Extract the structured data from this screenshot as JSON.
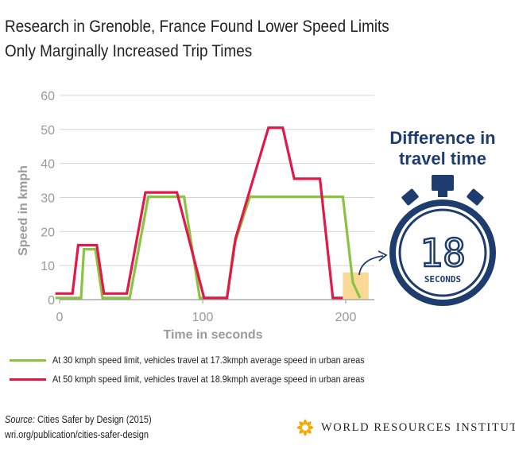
{
  "title_lines": [
    "Research in Grenoble, France Found Lower Speed Limits",
    "Only Marginally Increased Trip Times"
  ],
  "chart_data": {
    "type": "line",
    "title": "Research in Grenoble, France Found Lower Speed Limits Only Marginally Increased Trip Times",
    "xlabel": "Time in seconds",
    "ylabel": "Speed in kmph",
    "xlim": [
      0,
      220
    ],
    "ylim": [
      0,
      60
    ],
    "x_ticks": [
      0,
      100,
      200
    ],
    "y_ticks": [
      0,
      10,
      20,
      30,
      40,
      50,
      60
    ],
    "grid": "horizontal",
    "legend_position": "bottom-left",
    "series": [
      {
        "name": "At 30 kmph speed limit, vehicles travel at 17.3kmph average speed in urban areas",
        "color": "#8ac33f",
        "x": [
          -3,
          15,
          17,
          25,
          30,
          49,
          62,
          87,
          98,
          117,
          122,
          133,
          198,
          205,
          210
        ],
        "y": [
          0.5,
          0.5,
          14.8,
          14.8,
          0.5,
          0.5,
          30.2,
          30.2,
          0.5,
          0.5,
          16,
          30.2,
          30.2,
          5,
          0.5
        ]
      },
      {
        "name": "At 50 kmph speed limit, vehicles travel at 18.9kmph average speed in urban areas",
        "color": "#e2184a",
        "x": [
          -3,
          9,
          13,
          26,
          31,
          47,
          60,
          82,
          101,
          117,
          123,
          146,
          156,
          164,
          182,
          191,
          198
        ],
        "y": [
          1.8,
          1.8,
          16,
          16,
          1.8,
          1.8,
          31.5,
          31.5,
          0.5,
          0.5,
          18,
          50.5,
          50.5,
          35.5,
          35.5,
          0.5,
          0.5
        ]
      }
    ],
    "annotation": {
      "label": "Difference in travel time",
      "value": "18",
      "unit": "SECONDS",
      "x_range": [
        198,
        216
      ],
      "highlight_color": "#fad58c"
    }
  },
  "legend": [
    {
      "label": "At 30 kmph speed limit, vehicles travel at 17.3kmph average speed in urban areas",
      "color": "#8ac33f"
    },
    {
      "label": "At 50 kmph speed limit, vehicles travel at 18.9kmph average speed in urban areas",
      "color": "#e2184a"
    }
  ],
  "stopwatch": {
    "heading_lines": [
      "Difference in",
      "travel time"
    ],
    "value": "18",
    "unit": "SECONDS",
    "color": "#1f3c6e"
  },
  "source": {
    "label": "Source:",
    "text": " Cities Safer by Design (2015)",
    "url": "wri.org/publication/cities-safer-design"
  },
  "logo": {
    "text": "WORLD RESOURCES INSTITUTE",
    "color": "#f2a900"
  }
}
